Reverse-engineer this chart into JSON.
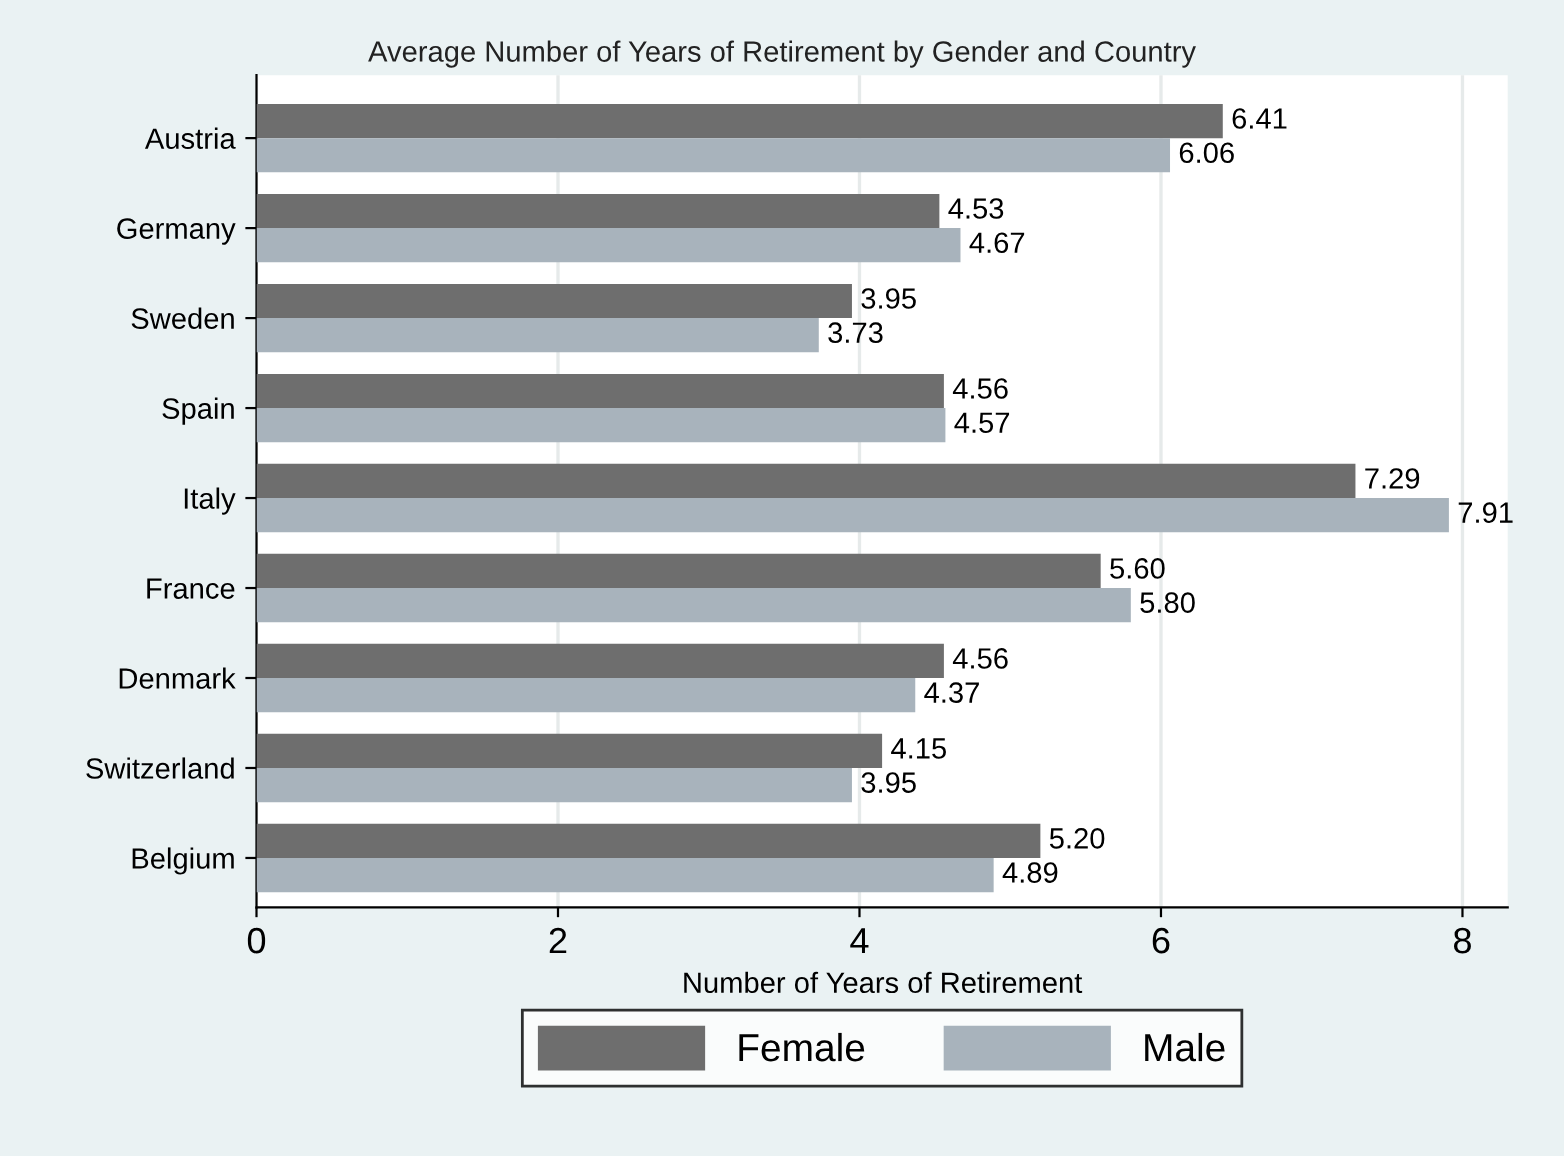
{
  "chart_data": {
    "type": "bar",
    "orientation": "horizontal",
    "title": "Average Number of Years of Retirement by Gender and Country",
    "xlabel": "Number of Years of Retirement",
    "categories": [
      "Austria",
      "Germany",
      "Sweden",
      "Spain",
      "Italy",
      "France",
      "Denmark",
      "Switzerland",
      "Belgium"
    ],
    "series": [
      {
        "name": "Female",
        "color": "#6e6e6e",
        "values": [
          6.41,
          4.53,
          3.95,
          4.56,
          7.29,
          5.6,
          4.56,
          4.15,
          5.2
        ],
        "value_labels": [
          "6.41",
          "4.53",
          "3.95",
          "4.56",
          "7.29",
          "5.60",
          "4.56",
          "4.15",
          "5.20"
        ]
      },
      {
        "name": "Male",
        "color": "#a8b3bc",
        "values": [
          6.06,
          4.67,
          3.73,
          4.57,
          7.91,
          5.8,
          4.37,
          3.95,
          4.89
        ],
        "value_labels": [
          "6.06",
          "4.67",
          "3.73",
          "4.57",
          "7.91",
          "5.80",
          "4.37",
          "3.95",
          "4.89"
        ]
      }
    ],
    "xlim": [
      0,
      8.3
    ],
    "xticks": [
      0,
      2,
      4,
      6,
      8
    ],
    "grid": "x",
    "legend": "bottom"
  }
}
